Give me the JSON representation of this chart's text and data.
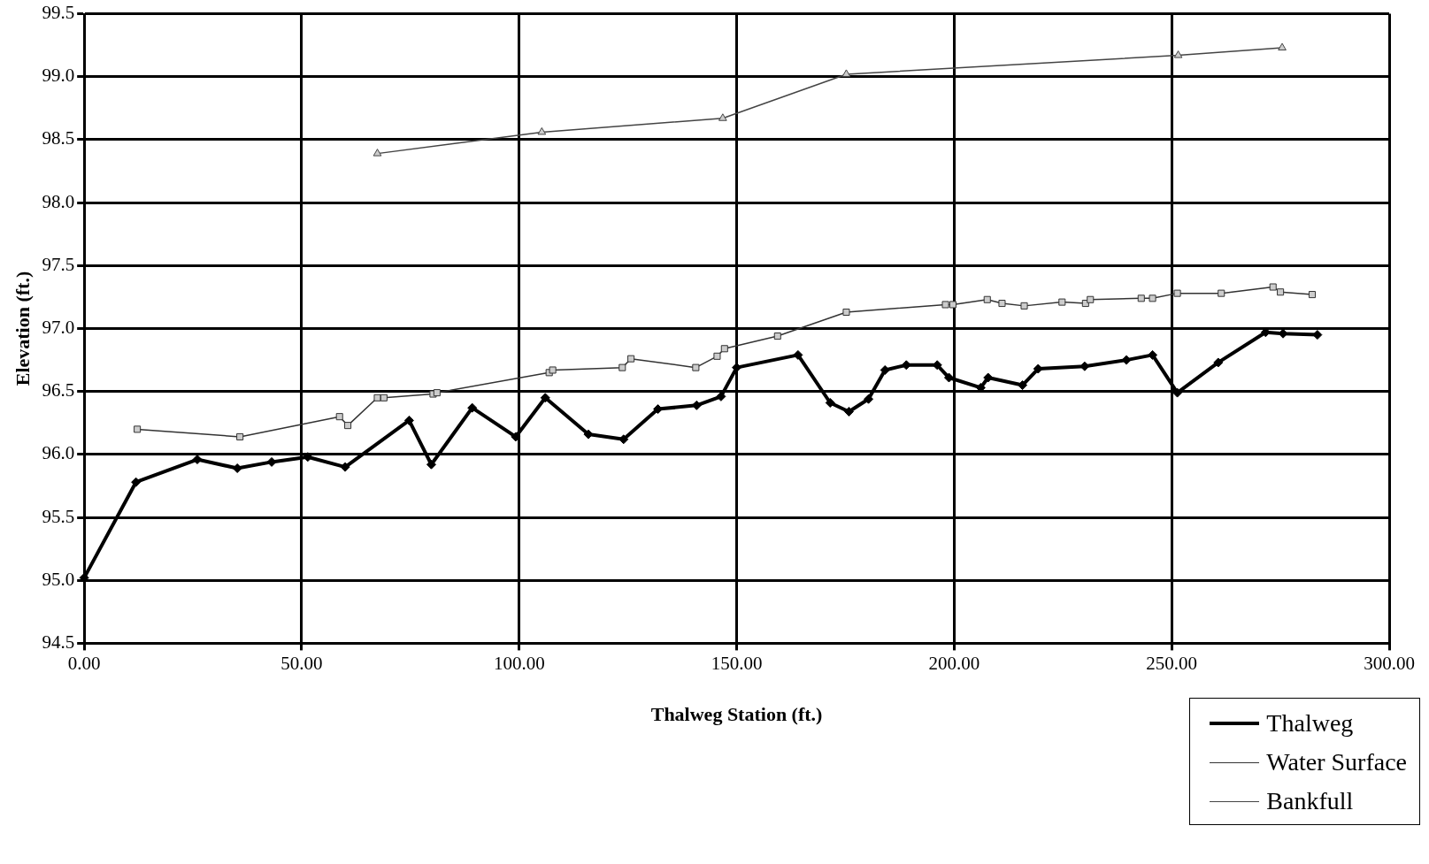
{
  "chart_data": {
    "type": "line",
    "xlabel": "Thalweg Station (ft.)",
    "ylabel": "Elevation (ft.)",
    "xlim": [
      0,
      300
    ],
    "ylim": [
      94.5,
      99.5
    ],
    "xticks": [
      {
        "value": 0,
        "label": "0.00"
      },
      {
        "value": 50,
        "label": "50.00"
      },
      {
        "value": 100,
        "label": "100.00"
      },
      {
        "value": 150,
        "label": "150.00"
      },
      {
        "value": 200,
        "label": "200.00"
      },
      {
        "value": 250,
        "label": "250.00"
      },
      {
        "value": 300,
        "label": "300.00"
      }
    ],
    "yticks": [
      94.5,
      {
        "value": 95,
        "label": "95.0"
      },
      95.5,
      {
        "value": 96,
        "label": "96.0"
      },
      96.5,
      {
        "value": 97,
        "label": "97.0"
      },
      97.5,
      {
        "value": 98,
        "label": "98.0"
      },
      98.5,
      {
        "value": 99,
        "label": "99.0"
      },
      99.5
    ],
    "grid": true,
    "legend": "bottom right",
    "line_style": "solid",
    "series": [
      {
        "name": "Thalweg",
        "color": "#000000",
        "marker": "diamond",
        "x": [
          0,
          11.9,
          26.0,
          35.2,
          43.1,
          51.4,
          60.0,
          74.7,
          79.8,
          89.2,
          99.2,
          106.0,
          115.9,
          124.0,
          131.9,
          140.8,
          146.4,
          150.0,
          164.1,
          171.5,
          175.8,
          180.3,
          184.1,
          189.0,
          196.1,
          198.8,
          206.1,
          207.8,
          215.7,
          219.3,
          230.0,
          239.6,
          245.6,
          251.3,
          260.7,
          271.6,
          275.6,
          283.5
        ],
        "values": [
          95.02,
          95.78,
          95.96,
          95.89,
          95.94,
          95.98,
          95.9,
          96.27,
          95.92,
          96.37,
          96.14,
          96.45,
          96.16,
          96.12,
          96.36,
          96.39,
          96.46,
          96.69,
          96.79,
          96.41,
          96.34,
          96.44,
          96.67,
          96.71,
          96.71,
          96.61,
          96.53,
          96.61,
          96.55,
          96.68,
          96.7,
          96.75,
          96.79,
          96.49,
          96.73,
          96.97,
          96.96,
          96.95
        ]
      },
      {
        "name": "Water Surface",
        "color": "#333333",
        "marker": "square",
        "x": [
          12.2,
          35.8,
          58.7,
          60.6,
          67.4,
          68.9,
          80.2,
          81.1,
          106.9,
          107.7,
          123.7,
          125.7,
          140.6,
          145.5,
          147.2,
          159.4,
          175.2,
          198.0,
          199.7,
          207.6,
          211.0,
          216.1,
          224.8,
          230.2,
          231.3,
          243.0,
          245.6,
          251.3,
          261.4,
          273.3,
          275.0,
          282.3
        ],
        "values": [
          96.2,
          96.14,
          96.3,
          96.23,
          96.45,
          96.45,
          96.48,
          96.49,
          96.65,
          96.67,
          96.69,
          96.76,
          96.69,
          96.78,
          96.84,
          96.94,
          97.13,
          97.19,
          97.19,
          97.23,
          97.2,
          97.18,
          97.21,
          97.2,
          97.23,
          97.24,
          97.24,
          97.28,
          97.28,
          97.33,
          97.29,
          97.27
        ]
      },
      {
        "name": "Bankfull",
        "color": "#444444",
        "marker": "triangle",
        "x": [
          67.4,
          105.2,
          146.8,
          175.2,
          251.5,
          275.4
        ],
        "values": [
          98.39,
          98.56,
          98.67,
          99.02,
          99.17,
          99.23
        ]
      }
    ]
  }
}
